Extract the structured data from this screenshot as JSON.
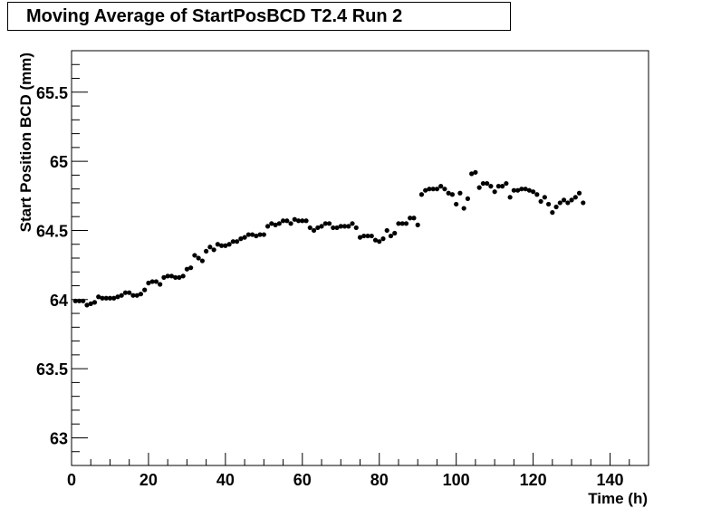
{
  "chart_data": {
    "type": "scatter",
    "title": "Moving Average of StartPosBCD T2.4 Run 2",
    "xlabel": "Time (h)",
    "ylabel": "Start Position BCD (mm)",
    "xlim": [
      0,
      150
    ],
    "ylim": [
      62.8,
      65.8
    ],
    "x_ticks": [
      "0",
      "20",
      "40",
      "60",
      "80",
      "100",
      "120",
      "140"
    ],
    "y_ticks": [
      "63",
      "63.5",
      "64",
      "64.5",
      "65",
      "65.5"
    ],
    "grid": false,
    "series": [
      {
        "marker_color": "#000000",
        "points": [
          [
            1,
            63.99
          ],
          [
            2,
            63.99
          ],
          [
            3,
            63.99
          ],
          [
            4,
            63.96
          ],
          [
            5,
            63.97
          ],
          [
            6,
            63.98
          ],
          [
            7,
            64.02
          ],
          [
            8,
            64.01
          ],
          [
            9,
            64.01
          ],
          [
            10,
            64.01
          ],
          [
            11,
            64.01
          ],
          [
            12,
            64.02
          ],
          [
            13,
            64.03
          ],
          [
            14,
            64.05
          ],
          [
            15,
            64.05
          ],
          [
            16,
            64.03
          ],
          [
            17,
            64.03
          ],
          [
            18,
            64.04
          ],
          [
            19,
            64.07
          ],
          [
            20,
            64.12
          ],
          [
            21,
            64.13
          ],
          [
            22,
            64.13
          ],
          [
            23,
            64.11
          ],
          [
            24,
            64.16
          ],
          [
            25,
            64.17
          ],
          [
            26,
            64.17
          ],
          [
            27,
            64.16
          ],
          [
            28,
            64.16
          ],
          [
            29,
            64.17
          ],
          [
            30,
            64.22
          ],
          [
            31,
            64.23
          ],
          [
            32,
            64.32
          ],
          [
            33,
            64.3
          ],
          [
            34,
            64.28
          ],
          [
            35,
            64.35
          ],
          [
            36,
            64.38
          ],
          [
            37,
            64.36
          ],
          [
            38,
            64.4
          ],
          [
            39,
            64.39
          ],
          [
            40,
            64.39
          ],
          [
            41,
            64.4
          ],
          [
            42,
            64.42
          ],
          [
            43,
            64.42
          ],
          [
            44,
            64.44
          ],
          [
            45,
            64.45
          ],
          [
            46,
            64.47
          ],
          [
            47,
            64.47
          ],
          [
            48,
            64.46
          ],
          [
            49,
            64.47
          ],
          [
            50,
            64.47
          ],
          [
            51,
            64.53
          ],
          [
            52,
            64.55
          ],
          [
            53,
            64.54
          ],
          [
            54,
            64.55
          ],
          [
            55,
            64.57
          ],
          [
            56,
            64.57
          ],
          [
            57,
            64.55
          ],
          [
            58,
            64.58
          ],
          [
            59,
            64.57
          ],
          [
            60,
            64.57
          ],
          [
            61,
            64.57
          ],
          [
            62,
            64.52
          ],
          [
            63,
            64.5
          ],
          [
            64,
            64.52
          ],
          [
            65,
            64.53
          ],
          [
            66,
            64.55
          ],
          [
            67,
            64.55
          ],
          [
            68,
            64.52
          ],
          [
            69,
            64.52
          ],
          [
            70,
            64.53
          ],
          [
            71,
            64.53
          ],
          [
            72,
            64.53
          ],
          [
            73,
            64.55
          ],
          [
            74,
            64.52
          ],
          [
            75,
            64.45
          ],
          [
            76,
            64.46
          ],
          [
            77,
            64.46
          ],
          [
            78,
            64.46
          ],
          [
            79,
            64.43
          ],
          [
            80,
            64.42
          ],
          [
            81,
            64.44
          ],
          [
            82,
            64.5
          ],
          [
            83,
            64.46
          ],
          [
            84,
            64.48
          ],
          [
            85,
            64.55
          ],
          [
            86,
            64.55
          ],
          [
            87,
            64.55
          ],
          [
            88,
            64.59
          ],
          [
            89,
            64.59
          ],
          [
            90,
            64.54
          ],
          [
            91,
            64.76
          ],
          [
            92,
            64.79
          ],
          [
            93,
            64.8
          ],
          [
            94,
            64.8
          ],
          [
            95,
            64.8
          ],
          [
            96,
            64.82
          ],
          [
            97,
            64.8
          ],
          [
            98,
            64.77
          ],
          [
            99,
            64.76
          ],
          [
            100,
            64.69
          ],
          [
            101,
            64.77
          ],
          [
            102,
            64.66
          ],
          [
            103,
            64.73
          ],
          [
            104,
            64.91
          ],
          [
            105,
            64.92
          ],
          [
            106,
            64.81
          ],
          [
            107,
            64.84
          ],
          [
            108,
            64.84
          ],
          [
            109,
            64.82
          ],
          [
            110,
            64.78
          ],
          [
            111,
            64.82
          ],
          [
            112,
            64.82
          ],
          [
            113,
            64.84
          ],
          [
            114,
            64.74
          ],
          [
            115,
            64.79
          ],
          [
            116,
            64.79
          ],
          [
            117,
            64.8
          ],
          [
            118,
            64.8
          ],
          [
            119,
            64.79
          ],
          [
            120,
            64.78
          ],
          [
            121,
            64.76
          ],
          [
            122,
            64.71
          ],
          [
            123,
            64.74
          ],
          [
            124,
            64.69
          ],
          [
            125,
            64.63
          ],
          [
            126,
            64.67
          ],
          [
            127,
            64.7
          ],
          [
            128,
            64.72
          ],
          [
            129,
            64.7
          ],
          [
            130,
            64.72
          ],
          [
            131,
            64.74
          ],
          [
            132,
            64.77
          ],
          [
            133,
            64.7
          ]
        ]
      }
    ]
  }
}
